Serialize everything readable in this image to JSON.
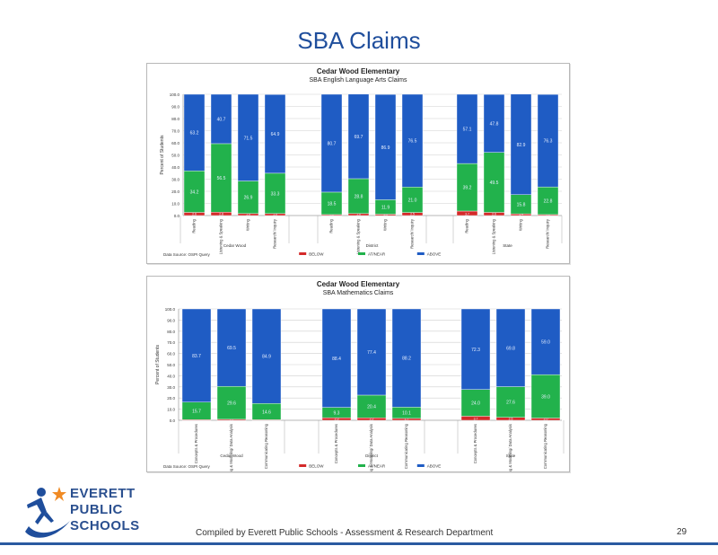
{
  "slide_title": "SBA Claims",
  "footer": {
    "compiled_by": "Compiled  by Everett Public Schools - Assessment & Research Department",
    "page_number": "29"
  },
  "logo": {
    "line1": "EVERETT",
    "line2": "PUBLIC",
    "line3": "SCHOOLS",
    "icon": "star-figure-swoosh-icon"
  },
  "colors": {
    "below": "#d42a2a",
    "at_near": "#22b24c",
    "above": "#1f5cc4",
    "title": "#1f4e9c"
  },
  "chart_data": [
    {
      "type": "bar",
      "stacked": true,
      "title": "Cedar Wood Elementary",
      "subtitle": "SBA English Language Arts Claims",
      "ylabel": "Percent of Students",
      "ylim": [
        0,
        100
      ],
      "yticks": [
        "0.0",
        "10.0",
        "20.0",
        "30.0",
        "40.0",
        "50.0",
        "60.0",
        "70.0",
        "80.0",
        "90.0",
        "100.0"
      ],
      "groups": [
        {
          "label": "Cedar Wood",
          "categories": [
            "Reading",
            "Listening & Speaking",
            "Writing",
            "Research/ Inquiry"
          ]
        },
        {
          "label": "District",
          "categories": [
            "Reading",
            "Listening & Speaking",
            "Writing",
            "Research/ Inquiry"
          ]
        },
        {
          "label": "State",
          "categories": [
            "Reading",
            "Listening & Speaking",
            "Writing",
            "Research/ Inquiry"
          ]
        }
      ],
      "series": [
        {
          "name": "BELOW",
          "values": [
            2.6,
            2.8,
            1.6,
            1.6,
            0.8,
            1.6,
            1.1,
            2.5,
            3.7,
            2.6,
            1.4,
            0.8
          ]
        },
        {
          "name": "AT/NEAR",
          "values": [
            34.2,
            56.5,
            26.9,
            33.3,
            18.5,
            28.8,
            11.9,
            21.0,
            39.2,
            49.5,
            15.8,
            22.8
          ]
        },
        {
          "name": "ABOVE",
          "values": [
            63.2,
            40.7,
            71.5,
            64.9,
            80.7,
            69.7,
            86.9,
            76.5,
            57.1,
            47.8,
            82.9,
            76.3
          ]
        }
      ],
      "value_labels": {
        "below": [
          "2.6",
          "2.8",
          "1.6",
          "1.6",
          "0.8",
          "1.6",
          "1.1",
          "2.5",
          "3.7",
          "2.6",
          "1.4",
          "0.8"
        ],
        "at_near": [
          "34.2",
          "56.5",
          "26.9",
          "33.3",
          "18.5",
          "28.8",
          "11.9",
          "21.0",
          "39.2",
          "49.5",
          "15.8",
          "22.8"
        ],
        "above": [
          "63.2",
          "40.7",
          "71.5",
          "64.9",
          "80.7",
          "69.7",
          "86.9",
          "76.5",
          "57.1",
          "47.8",
          "82.9",
          "76.3"
        ]
      },
      "source_note": "Data Source: OSPI Query",
      "legend": [
        "BELOW",
        "AT/NEAR",
        "ABOVE"
      ],
      "legend_position": "bottom",
      "grid": true
    },
    {
      "type": "bar",
      "stacked": true,
      "title": "Cedar Wood Elementary",
      "subtitle": "SBA Mathematics Claims",
      "ylabel": "Percent of Students",
      "ylim": [
        0,
        100
      ],
      "yticks": [
        "0.0",
        "10.0",
        "20.0",
        "30.0",
        "40.0",
        "50.0",
        "60.0",
        "70.0",
        "80.0",
        "90.0",
        "100.0"
      ],
      "groups": [
        {
          "label": "Cedar Wood",
          "categories": [
            "Concepts & Procedures",
            "Problem Solving & Modeling/ Data Analysis",
            "Communicating Reasoning"
          ]
        },
        {
          "label": "District",
          "categories": [
            "Concepts & Procedures",
            "Problem Solving & Modeling/ Data Analysis",
            "Communicating Reasoning"
          ]
        },
        {
          "label": "State",
          "categories": [
            "Concepts & Procedures",
            "Problem Solving & Modeling/ Data Analysis",
            "Communicating Reasoning"
          ]
        }
      ],
      "series": [
        {
          "name": "BELOW",
          "values": [
            0.6,
            0.9,
            0.5,
            2.3,
            2.2,
            1.7,
            3.7,
            2.6,
            2.0
          ]
        },
        {
          "name": "AT/NEAR",
          "values": [
            15.7,
            29.6,
            14.6,
            9.3,
            20.4,
            10.1,
            24.0,
            27.6,
            39.0
          ]
        },
        {
          "name": "ABOVE",
          "values": [
            83.7,
            69.5,
            84.9,
            88.4,
            77.4,
            88.2,
            72.3,
            69.8,
            59.0
          ]
        }
      ],
      "value_labels": {
        "below": [
          "0.6",
          "0.9",
          "0.5",
          "2.3",
          "2.2",
          "1.7",
          "3.7",
          "2.6",
          "2.0"
        ],
        "at_near": [
          "15.7",
          "29.6",
          "14.6",
          "9.3",
          "20.4",
          "10.1",
          "24.0",
          "27.6",
          "39.0"
        ],
        "above": [
          "83.7",
          "69.5",
          "84.9",
          "88.4",
          "77.4",
          "88.2",
          "72.3",
          "69.8",
          "59.0"
        ]
      },
      "source_note": "Data Source: OSPI Query",
      "legend": [
        "BELOW",
        "AT/NEAR",
        "ABOVE"
      ],
      "legend_position": "bottom",
      "grid": true
    }
  ]
}
